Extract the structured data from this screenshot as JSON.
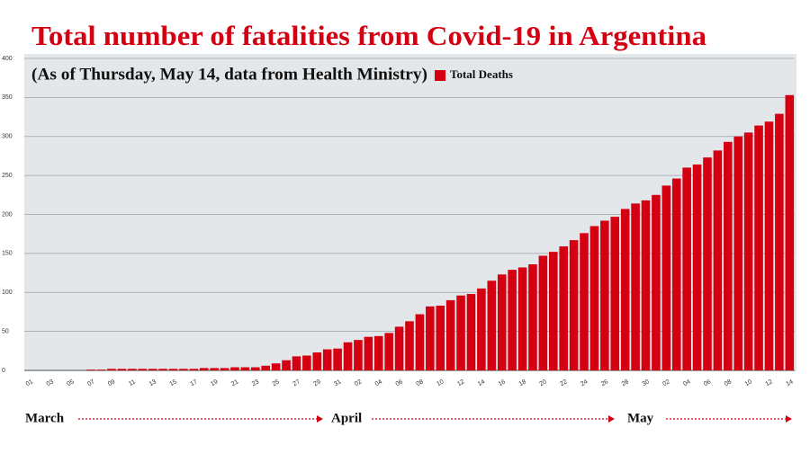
{
  "chart_data": {
    "type": "bar",
    "title": "Total number of fatalities from Covid-19 in Argentina",
    "subtitle": "(As of Thursday, May 14, data from Health Ministry)",
    "categories": [
      "01",
      null,
      "03",
      null,
      "05",
      null,
      "07",
      null,
      "09",
      null,
      "11",
      null,
      "13",
      null,
      "15",
      null,
      "17",
      null,
      "19",
      null,
      "21",
      null,
      "23",
      null,
      "25",
      null,
      "27",
      null,
      "29",
      null,
      "31",
      null,
      "02",
      null,
      "04",
      null,
      "06",
      null,
      "08",
      null,
      "10",
      null,
      "12",
      null,
      "14",
      null,
      "16",
      null,
      "18",
      null,
      "20",
      null,
      "22",
      null,
      "24",
      null,
      "26",
      null,
      "28",
      null,
      "30",
      null,
      "02",
      null,
      "04",
      null,
      "06",
      null,
      "08",
      null,
      "10",
      null,
      "12",
      null,
      "14"
    ],
    "series": [
      {
        "name": "Total Deaths",
        "color": "#d40012",
        "values": [
          0,
          0,
          0,
          0,
          0,
          0,
          1,
          1,
          2,
          2,
          2,
          2,
          2,
          2,
          2,
          2,
          2,
          3,
          3,
          3,
          4,
          4,
          4,
          6,
          9,
          13,
          18,
          19,
          23,
          27,
          28,
          36,
          39,
          43,
          44,
          48,
          56,
          63,
          72,
          82,
          83,
          90,
          96,
          98,
          105,
          115,
          123,
          129,
          132,
          136,
          147,
          152,
          159,
          167,
          176,
          185,
          192,
          197,
          207,
          214,
          218,
          225,
          237,
          246,
          260,
          264,
          273,
          282,
          293,
          300,
          305,
          314,
          319,
          329,
          353
        ]
      }
    ],
    "months": [
      "March",
      "April",
      "May"
    ],
    "ylim": [
      0,
      400
    ],
    "yticks": [
      0,
      50,
      100,
      150,
      200,
      250,
      300,
      350,
      400
    ],
    "grid": true
  }
}
